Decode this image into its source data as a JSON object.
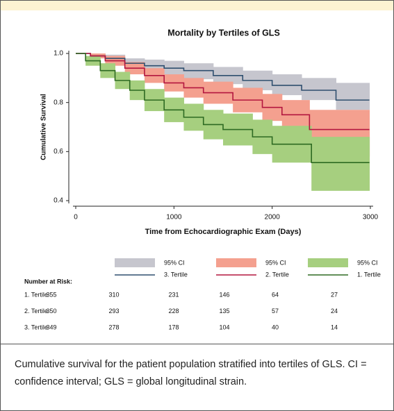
{
  "chart_data": {
    "type": "step",
    "title": "Mortality by Tertiles of GLS",
    "xlabel": "Time from Echocardiographic Exam (Days)",
    "ylabel": "Cumulative Survival",
    "xlim": [
      0,
      3000
    ],
    "xticks": [
      0,
      1000,
      2000,
      3000
    ],
    "ylim": [
      0.4,
      1.0
    ],
    "yticks": [
      {
        "value": 0.4,
        "label": "0.4"
      },
      {
        "value": 0.6,
        "label": "0.6"
      },
      {
        "value": 0.8,
        "label": "0.8"
      },
      {
        "value": 1.0,
        "label": "1.0"
      }
    ],
    "series": [
      {
        "name": "3. Tertile",
        "color": "#2f4f6f",
        "ci_label": "95% CI",
        "ci_color": "#c6c6ce",
        "x": [
          0,
          150,
          300,
          500,
          700,
          900,
          1100,
          1400,
          1700,
          2000,
          2300,
          2650,
          2990
        ],
        "values": [
          1,
          0.99,
          0.98,
          0.96,
          0.95,
          0.94,
          0.93,
          0.91,
          0.89,
          0.87,
          0.85,
          0.81,
          0.81
        ],
        "ci_lower": [
          1,
          0.98,
          0.965,
          0.94,
          0.925,
          0.91,
          0.895,
          0.875,
          0.85,
          0.83,
          0.81,
          0.77,
          0.77
        ],
        "ci_upper": [
          1,
          1,
          0.995,
          0.98,
          0.975,
          0.97,
          0.96,
          0.945,
          0.93,
          0.915,
          0.9,
          0.88,
          0.88
        ]
      },
      {
        "name": "2. Tertile",
        "color": "#b3163f",
        "ci_label": "95% CI",
        "ci_color": "#f4a08f",
        "x": [
          0,
          150,
          300,
          500,
          700,
          900,
          1100,
          1300,
          1600,
          1900,
          2100,
          2380,
          2990
        ],
        "values": [
          1,
          0.99,
          0.97,
          0.94,
          0.91,
          0.88,
          0.86,
          0.84,
          0.81,
          0.78,
          0.75,
          0.69,
          0.69
        ],
        "ci_lower": [
          1,
          0.98,
          0.95,
          0.915,
          0.88,
          0.845,
          0.82,
          0.795,
          0.76,
          0.725,
          0.69,
          0.58,
          0.58
        ],
        "ci_upper": [
          1,
          1,
          0.99,
          0.965,
          0.94,
          0.915,
          0.9,
          0.885,
          0.86,
          0.835,
          0.81,
          0.77,
          0.77
        ]
      },
      {
        "name": "1. Tertile",
        "color": "#2d6a22",
        "ci_label": "95% CI",
        "ci_color": "#a6cf7f",
        "x": [
          0,
          100,
          250,
          400,
          550,
          700,
          900,
          1100,
          1300,
          1500,
          1800,
          2000,
          2400,
          2990
        ],
        "values": [
          1,
          0.97,
          0.93,
          0.89,
          0.85,
          0.81,
          0.77,
          0.74,
          0.71,
          0.69,
          0.66,
          0.63,
          0.555,
          0.555
        ],
        "ci_lower": [
          1,
          0.95,
          0.9,
          0.855,
          0.81,
          0.765,
          0.72,
          0.685,
          0.65,
          0.625,
          0.59,
          0.555,
          0.44,
          0.44
        ],
        "ci_upper": [
          1,
          0.99,
          0.96,
          0.925,
          0.89,
          0.855,
          0.82,
          0.795,
          0.77,
          0.755,
          0.73,
          0.705,
          0.66,
          0.66
        ]
      }
    ],
    "risk_table": {
      "title": "Number at Risk:",
      "rows": [
        {
          "label": "1. Tertile",
          "values": [
            355,
            310,
            231,
            146,
            64,
            27
          ]
        },
        {
          "label": "2. Tertile",
          "values": [
            350,
            293,
            228,
            135,
            57,
            24
          ]
        },
        {
          "label": "3. Tertile",
          "values": [
            349,
            278,
            178,
            104,
            40,
            14
          ]
        }
      ]
    }
  },
  "caption": "Cumulative survival for the patient population stratified into tertiles of GLS. CI = confidence interval; GLS = global longitudinal strain."
}
